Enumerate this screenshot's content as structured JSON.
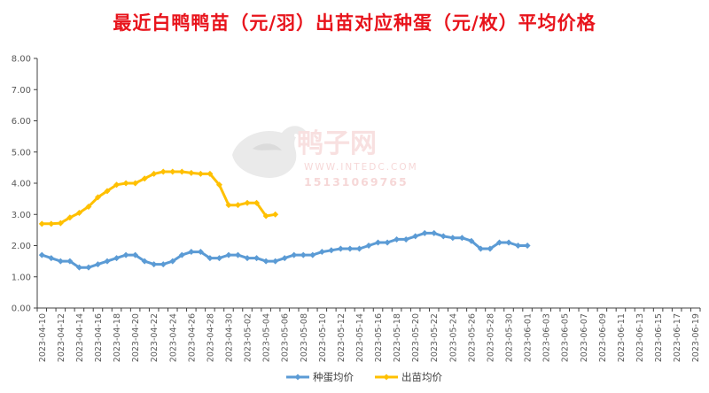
{
  "chart_data": {
    "type": "line",
    "title": "最近白鸭鸭苗（元/羽）出苗对应种蛋（元/枚）平均价格",
    "ylim": [
      0,
      8
    ],
    "yticks": [
      "0.00",
      "1.00",
      "2.00",
      "3.00",
      "4.00",
      "5.00",
      "6.00",
      "7.00",
      "8.00"
    ],
    "x_start": "2023-04-10",
    "x_end": "2023-06-20",
    "x_tick_labels": [
      "2023-04-10",
      "2023-04-12",
      "2023-04-14",
      "2023-04-16",
      "2023-04-18",
      "2023-04-20",
      "2023-04-22",
      "2023-04-24",
      "2023-04-26",
      "2023-04-28",
      "2023-04-30",
      "2023-05-02",
      "2023-05-04",
      "2023-05-06",
      "2023-05-08",
      "2023-05-10",
      "2023-05-12",
      "2023-05-14",
      "2023-05-16",
      "2023-05-18",
      "2023-05-20",
      "2023-05-22",
      "2023-05-24",
      "2023-05-26",
      "2023-05-28",
      "2023-05-30",
      "2023-06-01",
      "2023-06-03",
      "2023-06-05",
      "2023-06-07",
      "2023-06-09",
      "2023-06-11",
      "2023-06-13",
      "2023-06-15",
      "2023-06-17",
      "2023-06-19"
    ],
    "legend_position": "bottom",
    "grid": false,
    "series": [
      {
        "name": "种蛋均价",
        "color": "#5b9bd5",
        "points": [
          [
            "2023-04-10",
            1.7
          ],
          [
            "2023-04-11",
            1.6
          ],
          [
            "2023-04-12",
            1.5
          ],
          [
            "2023-04-13",
            1.5
          ],
          [
            "2023-04-14",
            1.3
          ],
          [
            "2023-04-15",
            1.3
          ],
          [
            "2023-04-16",
            1.4
          ],
          [
            "2023-04-17",
            1.5
          ],
          [
            "2023-04-18",
            1.6
          ],
          [
            "2023-04-19",
            1.7
          ],
          [
            "2023-04-20",
            1.7
          ],
          [
            "2023-04-21",
            1.5
          ],
          [
            "2023-04-22",
            1.4
          ],
          [
            "2023-04-23",
            1.4
          ],
          [
            "2023-04-24",
            1.5
          ],
          [
            "2023-04-25",
            1.7
          ],
          [
            "2023-04-26",
            1.8
          ],
          [
            "2023-04-27",
            1.8
          ],
          [
            "2023-04-28",
            1.6
          ],
          [
            "2023-04-29",
            1.6
          ],
          [
            "2023-04-30",
            1.7
          ],
          [
            "2023-05-01",
            1.7
          ],
          [
            "2023-05-02",
            1.6
          ],
          [
            "2023-05-03",
            1.6
          ],
          [
            "2023-05-04",
            1.5
          ],
          [
            "2023-05-05",
            1.5
          ],
          [
            "2023-05-06",
            1.6
          ],
          [
            "2023-05-07",
            1.7
          ],
          [
            "2023-05-08",
            1.7
          ],
          [
            "2023-05-09",
            1.7
          ],
          [
            "2023-05-10",
            1.8
          ],
          [
            "2023-05-11",
            1.85
          ],
          [
            "2023-05-12",
            1.9
          ],
          [
            "2023-05-13",
            1.9
          ],
          [
            "2023-05-14",
            1.9
          ],
          [
            "2023-05-15",
            2.0
          ],
          [
            "2023-05-16",
            2.1
          ],
          [
            "2023-05-17",
            2.1
          ],
          [
            "2023-05-18",
            2.2
          ],
          [
            "2023-05-19",
            2.2
          ],
          [
            "2023-05-20",
            2.3
          ],
          [
            "2023-05-21",
            2.4
          ],
          [
            "2023-05-22",
            2.4
          ],
          [
            "2023-05-23",
            2.3
          ],
          [
            "2023-05-24",
            2.25
          ],
          [
            "2023-05-25",
            2.25
          ],
          [
            "2023-05-26",
            2.15
          ],
          [
            "2023-05-27",
            1.9
          ],
          [
            "2023-05-28",
            1.9
          ],
          [
            "2023-05-29",
            2.1
          ],
          [
            "2023-05-30",
            2.1
          ],
          [
            "2023-05-31",
            2.0
          ],
          [
            "2023-06-01",
            2.0
          ]
        ]
      },
      {
        "name": "出苗均价",
        "color": "#ffc000",
        "points": [
          [
            "2023-04-10",
            2.7
          ],
          [
            "2023-04-11",
            2.7
          ],
          [
            "2023-04-12",
            2.72
          ],
          [
            "2023-04-13",
            2.9
          ],
          [
            "2023-04-14",
            3.05
          ],
          [
            "2023-04-15",
            3.25
          ],
          [
            "2023-04-16",
            3.55
          ],
          [
            "2023-04-17",
            3.75
          ],
          [
            "2023-04-18",
            3.95
          ],
          [
            "2023-04-19",
            4.0
          ],
          [
            "2023-04-20",
            4.0
          ],
          [
            "2023-04-21",
            4.15
          ],
          [
            "2023-04-22",
            4.3
          ],
          [
            "2023-04-23",
            4.37
          ],
          [
            "2023-04-24",
            4.37
          ],
          [
            "2023-04-25",
            4.37
          ],
          [
            "2023-04-26",
            4.33
          ],
          [
            "2023-04-27",
            4.3
          ],
          [
            "2023-04-28",
            4.3
          ],
          [
            "2023-04-29",
            3.95
          ],
          [
            "2023-04-30",
            3.3
          ],
          [
            "2023-05-01",
            3.3
          ],
          [
            "2023-05-02",
            3.37
          ],
          [
            "2023-05-03",
            3.37
          ],
          [
            "2023-05-04",
            2.95
          ],
          [
            "2023-05-05",
            3.0
          ]
        ]
      }
    ]
  },
  "watermark": {
    "brand": "鸭子网",
    "site": "WWW.INTEDC.COM",
    "phone": "15131069765"
  }
}
